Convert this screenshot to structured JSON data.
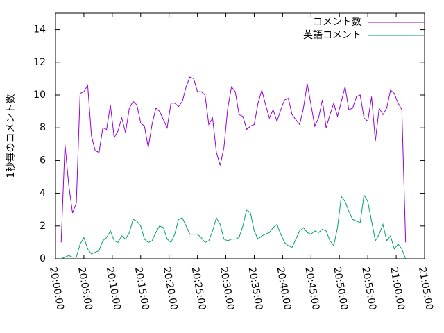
{
  "chart_data": {
    "type": "line",
    "ylabel": "1秒毎のコメント数",
    "x": [
      "20:01:00",
      "20:01:40",
      "20:02:20",
      "20:03:00",
      "20:03:40",
      "20:04:20",
      "20:05:00",
      "20:05:40",
      "20:06:20",
      "20:07:00",
      "20:07:40",
      "20:08:20",
      "20:09:00",
      "20:09:40",
      "20:10:20",
      "20:11:00",
      "20:11:40",
      "20:12:20",
      "20:13:00",
      "20:13:40",
      "20:14:20",
      "20:15:00",
      "20:15:40",
      "20:16:20",
      "20:17:00",
      "20:17:40",
      "20:18:20",
      "20:19:00",
      "20:19:40",
      "20:20:20",
      "20:21:00",
      "20:21:40",
      "20:22:20",
      "20:23:00",
      "20:23:40",
      "20:24:20",
      "20:25:00",
      "20:25:40",
      "20:26:20",
      "20:27:00",
      "20:27:40",
      "20:28:20",
      "20:29:00",
      "20:29:40",
      "20:30:20",
      "20:31:00",
      "20:31:40",
      "20:32:20",
      "20:33:00",
      "20:33:40",
      "20:34:20",
      "20:35:00",
      "20:35:40",
      "20:36:20",
      "20:37:00",
      "20:37:40",
      "20:38:20",
      "20:39:00",
      "20:39:40",
      "20:40:20",
      "20:41:00",
      "20:41:40",
      "20:42:20",
      "20:43:00",
      "20:43:40",
      "20:44:20",
      "20:45:00",
      "20:45:40",
      "20:46:20",
      "20:47:00",
      "20:47:40",
      "20:48:20",
      "20:49:00",
      "20:49:40",
      "20:50:20",
      "20:51:00",
      "20:51:40",
      "20:52:20",
      "20:53:00",
      "20:53:40",
      "20:54:20",
      "20:55:00",
      "20:55:40",
      "20:56:20",
      "20:57:00",
      "20:57:40",
      "20:58:20",
      "20:59:00",
      "20:59:40",
      "21:00:20",
      "21:01:00",
      "21:01:40"
    ],
    "series": [
      {
        "name": "コメント数",
        "color": "#9400d3",
        "values": [
          1.0,
          7.0,
          4.5,
          2.8,
          3.4,
          10.1,
          10.2,
          10.6,
          7.5,
          6.6,
          6.5,
          8.0,
          7.9,
          9.4,
          7.4,
          7.8,
          8.6,
          7.7,
          9.2,
          9.6,
          9.4,
          8.3,
          8.1,
          6.8,
          8.2,
          9.2,
          9.0,
          8.5,
          8.0,
          9.5,
          9.5,
          9.3,
          9.6,
          10.5,
          11.1,
          11.0,
          10.2,
          10.2,
          10.0,
          8.2,
          8.6,
          6.5,
          5.7,
          6.8,
          9.2,
          10.5,
          10.2,
          8.8,
          8.7,
          7.9,
          8.1,
          8.2,
          9.5,
          10.3,
          9.4,
          8.6,
          9.1,
          8.4,
          9.1,
          9.7,
          9.8,
          8.8,
          8.5,
          8.2,
          9.2,
          10.7,
          9.4,
          8.1,
          8.6,
          9.7,
          8.0,
          8.8,
          9.5,
          8.7,
          9.6,
          10.5,
          9.1,
          9.2,
          9.9,
          10.0,
          8.6,
          8.4,
          9.9,
          7.2,
          9.2,
          8.8,
          9.2,
          10.3,
          10.1,
          9.5,
          9.1,
          1.0
        ]
      },
      {
        "name": "英語コメント",
        "color": "#009e73",
        "values": [
          0,
          0.1,
          0.2,
          0.1,
          0.1,
          0.9,
          1.3,
          0.6,
          0.3,
          0.4,
          0.5,
          1.1,
          1.3,
          1.7,
          1.1,
          1.0,
          1.4,
          1.2,
          1.6,
          2.4,
          2.3,
          2.0,
          1.2,
          1.0,
          1.1,
          1.6,
          2.0,
          1.9,
          1.2,
          1.0,
          1.5,
          2.4,
          2.5,
          2.0,
          1.5,
          1.5,
          1.5,
          1.3,
          1.0,
          1.1,
          1.7,
          2.5,
          2.1,
          1.2,
          1.1,
          1.2,
          1.2,
          1.3,
          2.0,
          3.0,
          2.8,
          1.7,
          1.2,
          1.4,
          1.5,
          1.6,
          1.9,
          2.1,
          1.5,
          1.0,
          0.8,
          0.7,
          1.2,
          1.7,
          1.9,
          1.6,
          1.5,
          1.7,
          1.6,
          1.8,
          1.7,
          1.1,
          0.8,
          1.9,
          3.8,
          3.5,
          2.9,
          2.4,
          2.3,
          2.2,
          3.9,
          3.5,
          2.3,
          1.1,
          1.5,
          2.1,
          1.1,
          1.4,
          0.6,
          0.9,
          0.6,
          0
        ]
      }
    ],
    "xlim": [
      "20:00:00",
      "21:05:00"
    ],
    "xticks": [
      "20:00:00",
      "20:05:00",
      "20:10:00",
      "20:15:00",
      "20:20:00",
      "20:25:00",
      "20:30:00",
      "20:35:00",
      "20:40:00",
      "20:45:00",
      "20:50:00",
      "20:55:00",
      "21:00:00",
      "21:05:00"
    ],
    "ylim": [
      0,
      15
    ],
    "yticks": [
      0,
      2,
      4,
      6,
      8,
      10,
      12,
      14
    ],
    "legend": "top-right"
  }
}
